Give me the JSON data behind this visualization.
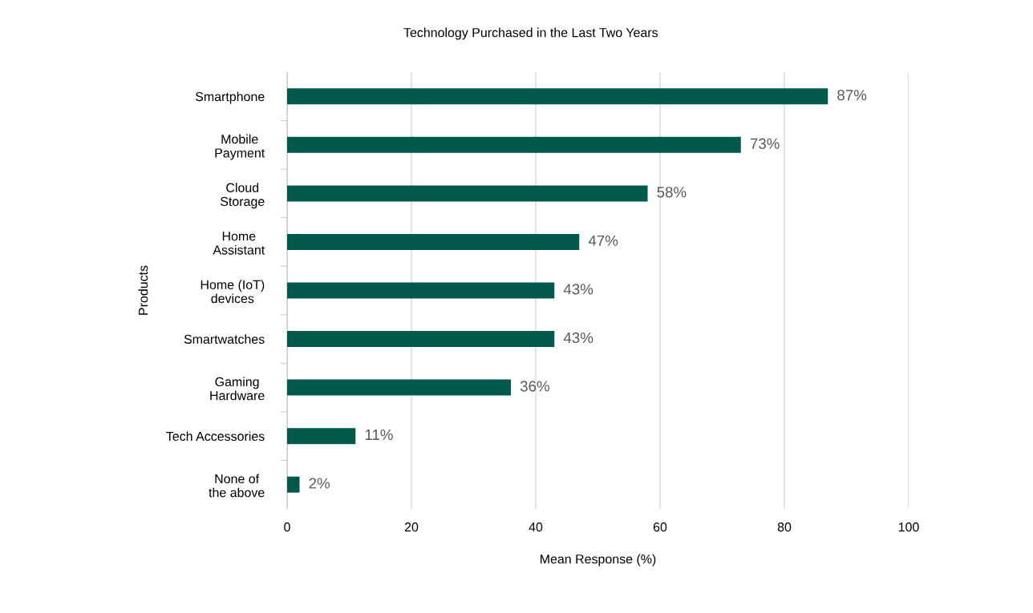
{
  "chart_data": {
    "type": "bar",
    "orientation": "horizontal",
    "title": "Technology Purchased in the Last Two Years",
    "xlabel": "Mean Response (%)",
    "ylabel": "Products",
    "categories": [
      "Smartphone",
      "Mobile\nPayment",
      "Cloud\nStorage",
      "Home\nAssistant",
      "Home (IoT)\ndevices",
      "Smartwatches",
      "Gaming\nHardware",
      "Tech Accessories",
      "None of\nthe above"
    ],
    "values": [
      87,
      73,
      58,
      47,
      43,
      43,
      36,
      11,
      2
    ],
    "value_labels": [
      "87%",
      "73%",
      "58%",
      "47%",
      "43%",
      "43%",
      "36%",
      "11%",
      "2%"
    ],
    "color": "#00594c",
    "xlim": [
      0,
      100
    ],
    "xticks": [
      0,
      20,
      40,
      60,
      80,
      100
    ],
    "grid": "x",
    "legend": false
  }
}
